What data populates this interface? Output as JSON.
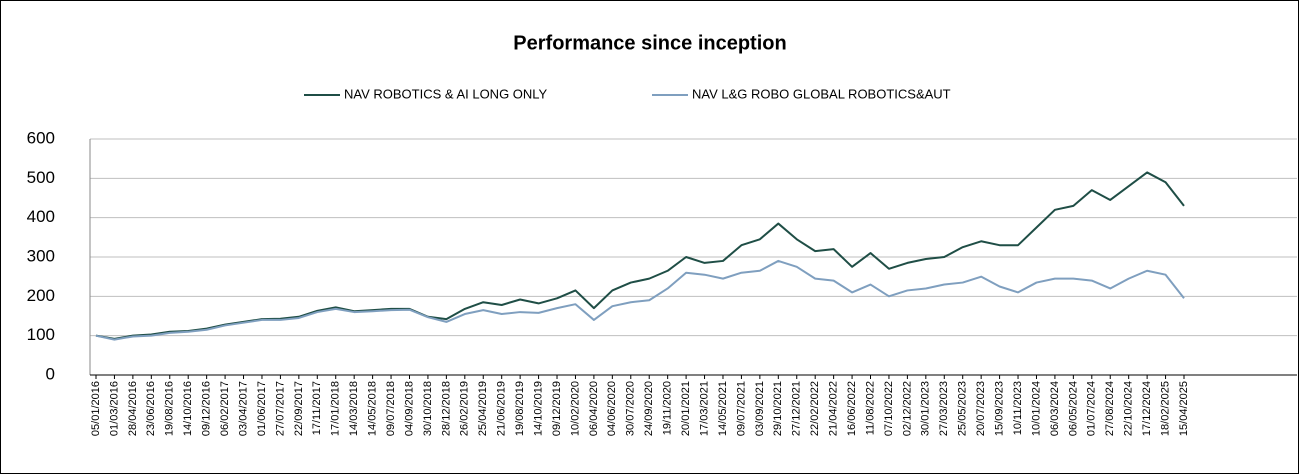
{
  "chart_data": {
    "type": "line",
    "title": "Performance since inception",
    "categories": [
      "05/01/2016",
      "01/03/2016",
      "28/04/2016",
      "23/06/2016",
      "19/08/2016",
      "14/10/2016",
      "09/12/2016",
      "06/02/2017",
      "03/04/2017",
      "01/06/2017",
      "27/07/2017",
      "22/09/2017",
      "17/11/2017",
      "17/01/2018",
      "14/03/2018",
      "14/05/2018",
      "09/07/2018",
      "04/09/2018",
      "30/10/2018",
      "28/12/2018",
      "26/02/2019",
      "25/04/2019",
      "21/06/2019",
      "19/08/2019",
      "14/10/2019",
      "09/12/2019",
      "10/02/2020",
      "06/04/2020",
      "04/06/2020",
      "30/07/2020",
      "24/09/2020",
      "19/11/2020",
      "20/01/2021",
      "17/03/2021",
      "14/05/2021",
      "09/07/2021",
      "03/09/2021",
      "29/10/2021",
      "27/12/2021",
      "22/02/2022",
      "21/04/2022",
      "16/06/2022",
      "11/08/2022",
      "07/10/2022",
      "02/12/2022",
      "30/01/2023",
      "27/03/2023",
      "25/05/2023",
      "20/07/2023",
      "15/09/2023",
      "10/11/2023",
      "10/01/2024",
      "06/03/2024",
      "06/05/2024",
      "01/07/2024",
      "27/08/2024",
      "22/10/2024",
      "17/12/2024",
      "18/02/2025",
      "15/04/2025"
    ],
    "series": [
      {
        "name": "NAV ROBOTICS & AI LONG ONLY",
        "color": "#1f4e46",
        "values": [
          100,
          92,
          100,
          103,
          110,
          112,
          118,
          128,
          135,
          142,
          143,
          148,
          163,
          172,
          162,
          165,
          168,
          168,
          148,
          142,
          168,
          185,
          178,
          192,
          182,
          195,
          215,
          170,
          215,
          235,
          245,
          265,
          300,
          285,
          290,
          330,
          345,
          385,
          345,
          315,
          320,
          275,
          310,
          270,
          285,
          295,
          300,
          325,
          340,
          330,
          330,
          375,
          420,
          430,
          470,
          445,
          480,
          515,
          490,
          430
        ]
      },
      {
        "name": "NAV L&G ROBO GLOBAL ROBOTICS&AUT",
        "color": "#7f9fbf",
        "values": [
          100,
          90,
          98,
          100,
          107,
          110,
          115,
          126,
          133,
          140,
          140,
          145,
          160,
          168,
          160,
          162,
          165,
          166,
          147,
          135,
          155,
          165,
          155,
          160,
          158,
          170,
          180,
          140,
          175,
          185,
          190,
          220,
          260,
          255,
          245,
          260,
          265,
          290,
          275,
          245,
          240,
          210,
          230,
          200,
          215,
          220,
          230,
          235,
          250,
          225,
          210,
          235,
          245,
          245,
          240,
          220,
          245,
          265,
          255,
          195
        ]
      }
    ],
    "ylim": [
      0,
      600
    ],
    "yticks": [
      0,
      100,
      200,
      300,
      400,
      500,
      600
    ],
    "grid": true
  }
}
